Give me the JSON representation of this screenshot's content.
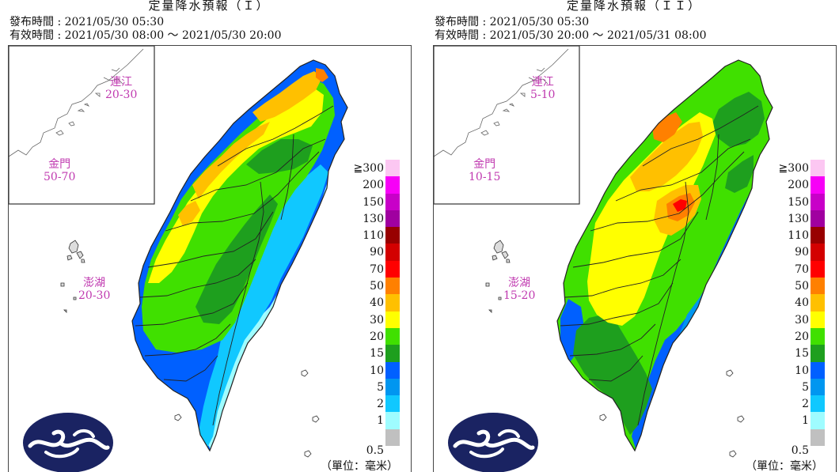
{
  "panels": [
    {
      "title": "定量降水預報（Ｉ）",
      "issued": "發布時間 : 2021/05/30 05:30",
      "valid": "有效時間 : 2021/05/30 08:00 ～ 2021/05/30 20:00",
      "islands": [
        {
          "name": "連江",
          "range": "20-30"
        },
        {
          "name": "金門",
          "range": "50-70"
        },
        {
          "name": "澎湖",
          "range": "20-30"
        }
      ],
      "scheme": "west-heavy"
    },
    {
      "title": "定量降水預報（ＩＩ）",
      "issued": "發布時間 : 2021/05/30 05:30",
      "valid": "有效時間 : 2021/05/30 20:00 ～ 2021/05/31 08:00",
      "islands": [
        {
          "name": "連江",
          "range": "5-10"
        },
        {
          "name": "金門",
          "range": "10-15"
        },
        {
          "name": "澎湖",
          "range": "15-20"
        }
      ],
      "scheme": "central-peak"
    }
  ],
  "legend": {
    "ticks": [
      "≧300",
      "200",
      "150",
      "130",
      "110",
      "90",
      "70",
      "50",
      "40",
      "30",
      "20",
      "15",
      "10",
      "5",
      "2",
      "1"
    ],
    "bottom": "0.5",
    "colors": [
      "#fcc7f2",
      "#f700f7",
      "#c800c8",
      "#a000a0",
      "#980000",
      "#d30000",
      "#ff0000",
      "#ff8000",
      "#ffc000",
      "#ffff00",
      "#40e000",
      "#1e9f1e",
      "#0060ff",
      "#0096f0",
      "#10c8ff",
      "#9ffcff",
      "#c0c0c0"
    ],
    "unit": "（單位：毫米）"
  }
}
